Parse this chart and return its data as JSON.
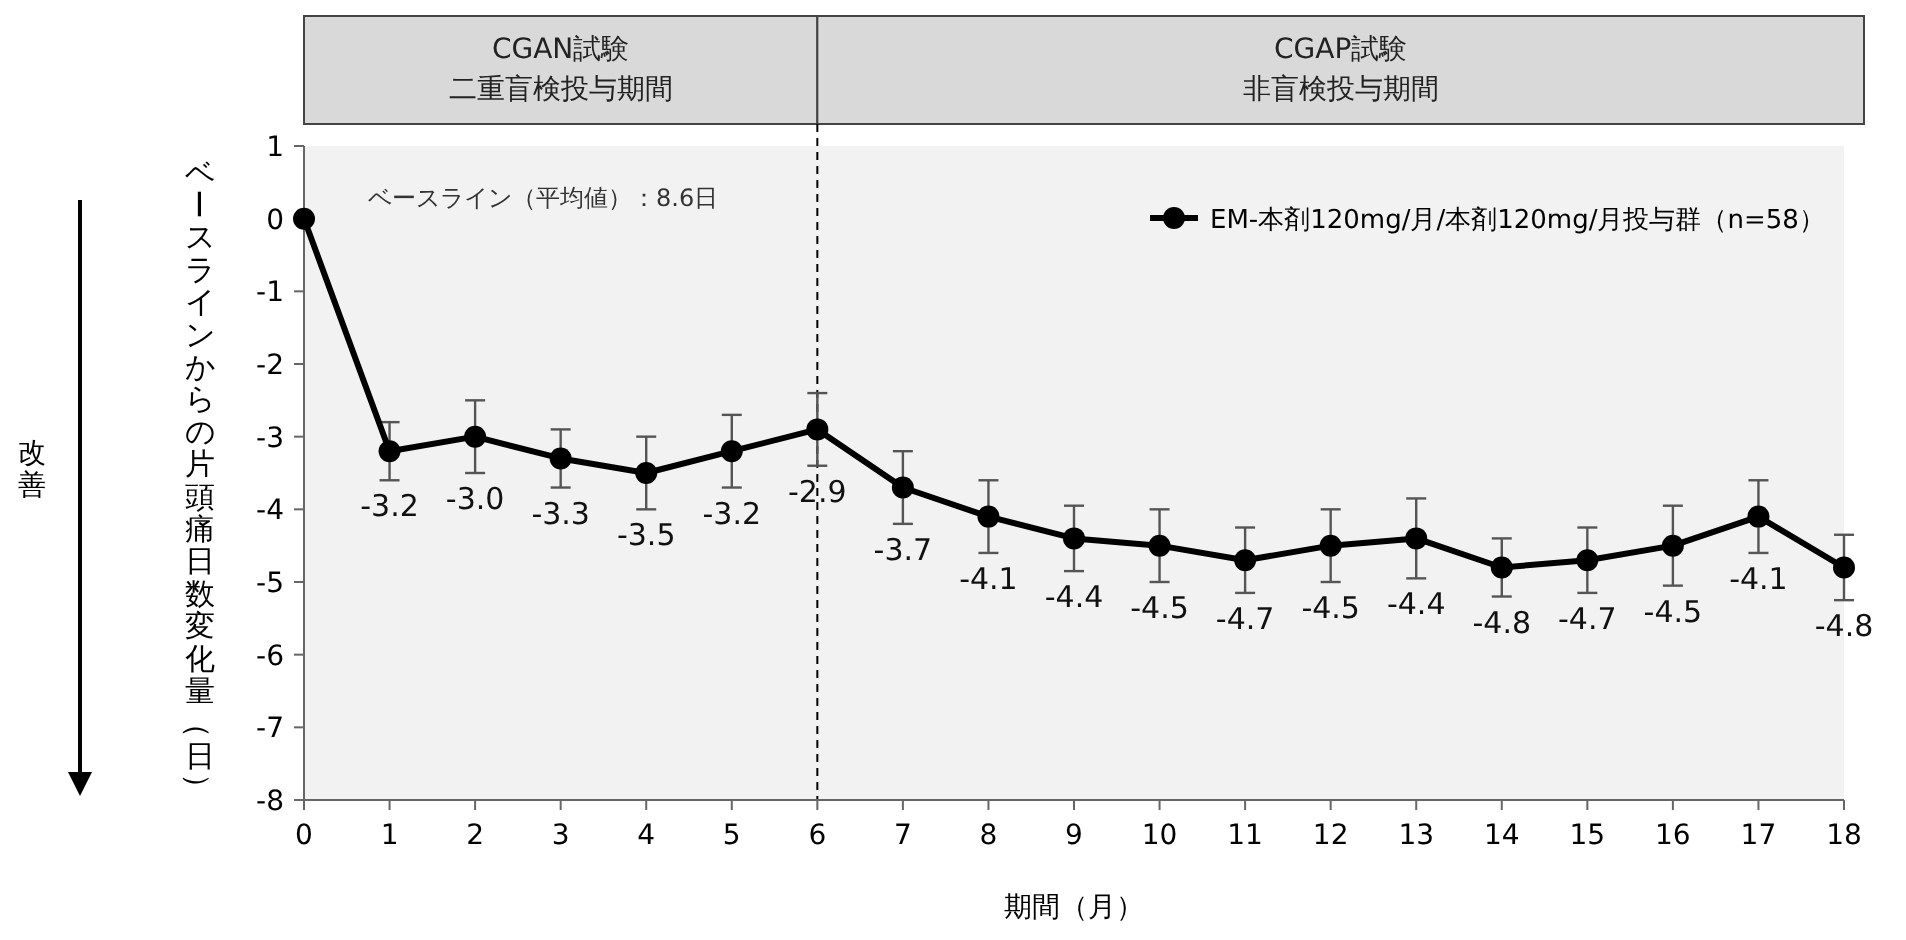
{
  "chart_data": {
    "type": "line",
    "xlabel": "期間（月）",
    "ylabel": "ベースラインからの片頭痛日数変化量（日）",
    "annotations": [
      "ベースライン（平均値）：8.6日",
      "改善",
      "二重盲検投与期間",
      "非盲検投与期間"
    ],
    "x": [
      0,
      1,
      2,
      3,
      4,
      5,
      6,
      7,
      8,
      9,
      10,
      11,
      12,
      13,
      14,
      15,
      16,
      17,
      18
    ],
    "series": [
      {
        "name": "EM-本剤120mg/月/本剤120mg/月投与群（n=58）",
        "color": "#000000",
        "values": [
          0,
          -3.2,
          -3.0,
          -3.3,
          -3.5,
          -3.2,
          -2.9,
          -3.7,
          -4.1,
          -4.4,
          -4.5,
          -4.7,
          -4.5,
          -4.4,
          -4.8,
          -4.7,
          -4.5,
          -4.1,
          -4.8
        ],
        "value_labels": [
          null,
          "-3.2",
          "-3.0",
          "-3.3",
          "-3.5",
          "-3.2",
          "-2.9",
          "-3.7",
          "-4.1",
          "-4.4",
          "-4.5",
          "-4.7",
          "-4.5",
          "-4.4",
          "-4.8",
          "-4.7",
          "-4.5",
          "-4.1",
          "-4.8"
        ],
        "errors": [
          null,
          0.4,
          0.5,
          0.4,
          0.5,
          0.5,
          0.5,
          0.5,
          0.5,
          0.45,
          0.5,
          0.45,
          0.5,
          0.55,
          0.4,
          0.45,
          0.55,
          0.5,
          0.45
        ]
      }
    ],
    "xlim": [
      0,
      18
    ],
    "xticks": [
      0,
      1,
      2,
      3,
      4,
      5,
      6,
      7,
      8,
      9,
      10,
      11,
      12,
      13,
      14,
      15,
      16,
      17,
      18
    ],
    "ylim": [
      -8,
      1
    ],
    "yticks": [
      -8,
      -7,
      -6,
      -5,
      -4,
      -3,
      -2,
      -1,
      0,
      1
    ],
    "ref_lines": [
      {
        "axis": "x",
        "value": 6,
        "line_style": "dashed",
        "color": "#000000"
      }
    ],
    "bands": [
      {
        "axis": "x",
        "from": 0,
        "to": 6,
        "label": "CGAN試験",
        "color": "#f2f2f2"
      },
      {
        "axis": "x",
        "from": 6,
        "to": 18,
        "label": "CGAP試験",
        "color": "#f2f2f2"
      }
    ],
    "legend": "top right",
    "marker": "circle",
    "line_style": "solid",
    "grid": false
  }
}
